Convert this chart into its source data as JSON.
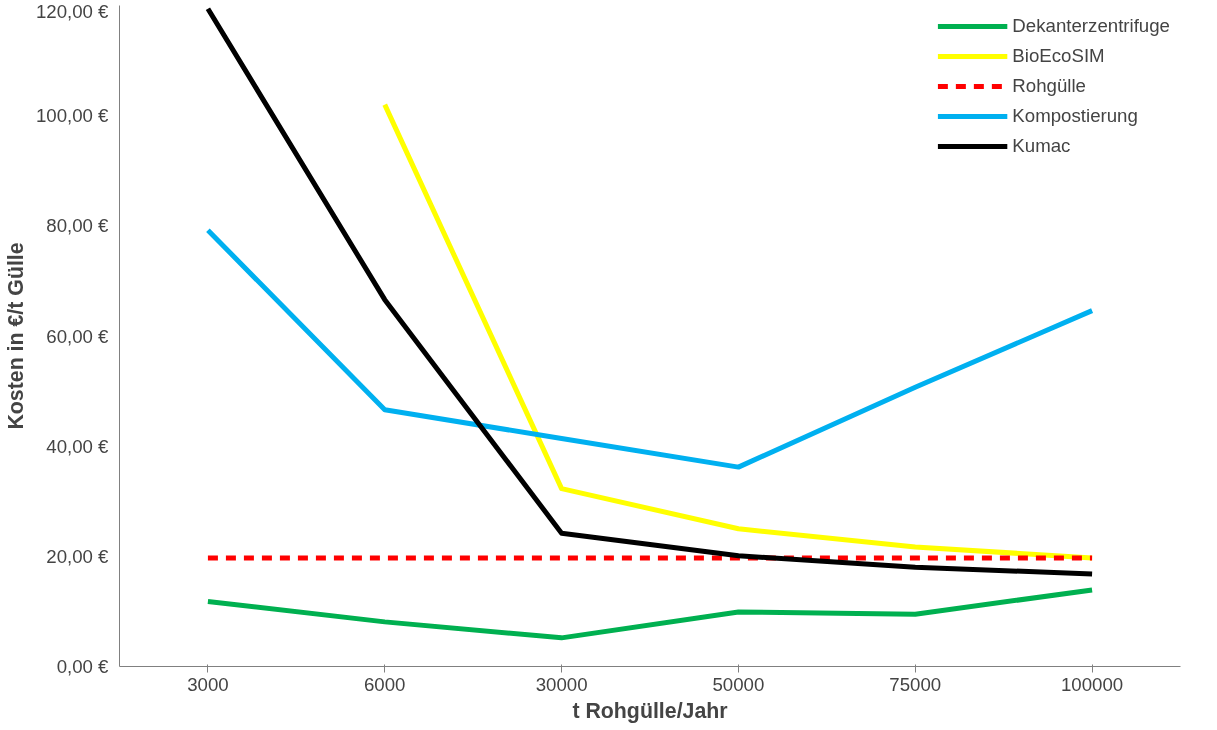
{
  "chart_data": {
    "type": "line",
    "xlabel": "t Rohgülle/Jahr",
    "ylabel": "Kosten in €/t Gülle",
    "categories": [
      "3000",
      "6000",
      "30000",
      "50000",
      "75000",
      "100000"
    ],
    "ylim": [
      0,
      120
    ],
    "yticks": [
      {
        "value": 0,
        "label": "0,00 €"
      },
      {
        "value": 20,
        "label": "20,00 €"
      },
      {
        "value": 40,
        "label": "40,00 €"
      },
      {
        "value": 60,
        "label": "60,00 €"
      },
      {
        "value": 80,
        "label": "80,00 €"
      },
      {
        "value": 100,
        "label": "100,00 €"
      },
      {
        "value": 120,
        "label": "120,00 €"
      }
    ],
    "grid": false,
    "legend": "top right",
    "marker": "none",
    "series": [
      {
        "name": "Dekanterzentrifuge",
        "color": "#00b050",
        "values": [
          11.8,
          8.1,
          5.2,
          9.9,
          9.5,
          13.9
        ]
      },
      {
        "name": "BioEcoSIM",
        "color": "#ffff00",
        "values": [
          null,
          102,
          32.3,
          25,
          21.7,
          19.7
        ]
      },
      {
        "name": "Rohgülle",
        "color": "#ff0000",
        "line_style": "dashed",
        "values": [
          19.7,
          19.7,
          19.7,
          19.7,
          19.7,
          19.7
        ]
      },
      {
        "name": "Kompostierung",
        "color": "#00b0f0",
        "values": [
          79.2,
          46.6,
          41.4,
          36.2,
          50.7,
          64.6
        ]
      },
      {
        "name": "Kumac",
        "color": "#000000",
        "values": [
          119.4,
          66.6,
          24.2,
          20.1,
          18.0,
          16.8
        ]
      }
    ]
  }
}
